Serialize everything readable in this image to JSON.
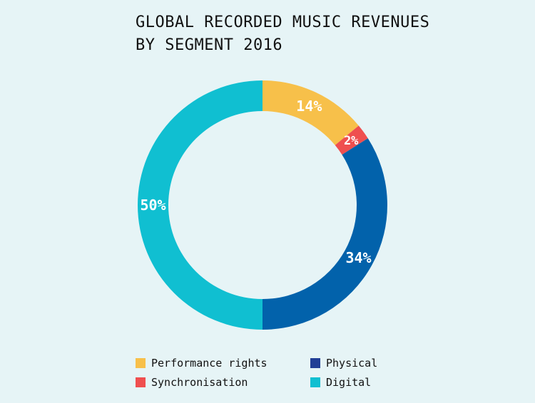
{
  "chart_data": {
    "type": "pie",
    "subtype": "donut",
    "title": "GLOBAL RECORDED MUSIC REVENUES\nBY SEGMENT 2016",
    "categories": [
      "Performance rights",
      "Synchronisation",
      "Physical",
      "Digital"
    ],
    "values": [
      14,
      2,
      34,
      50
    ],
    "labels": [
      "14%",
      "2%",
      "34%",
      "50%"
    ],
    "colors": [
      "#f7c04a",
      "#ef4f4f",
      "#0262ab",
      "#10bfd1"
    ],
    "legend": {
      "placement": "bottom",
      "items": [
        {
          "label": "Performance rights",
          "color": "#f7c04a"
        },
        {
          "label": "Physical",
          "color": "#213f96"
        },
        {
          "label": "Synchronisation",
          "color": "#ef4f4f"
        },
        {
          "label": "Digital",
          "color": "#10bfd1"
        }
      ]
    },
    "label_color": "#ffffff",
    "background": "#e6f4f6"
  }
}
